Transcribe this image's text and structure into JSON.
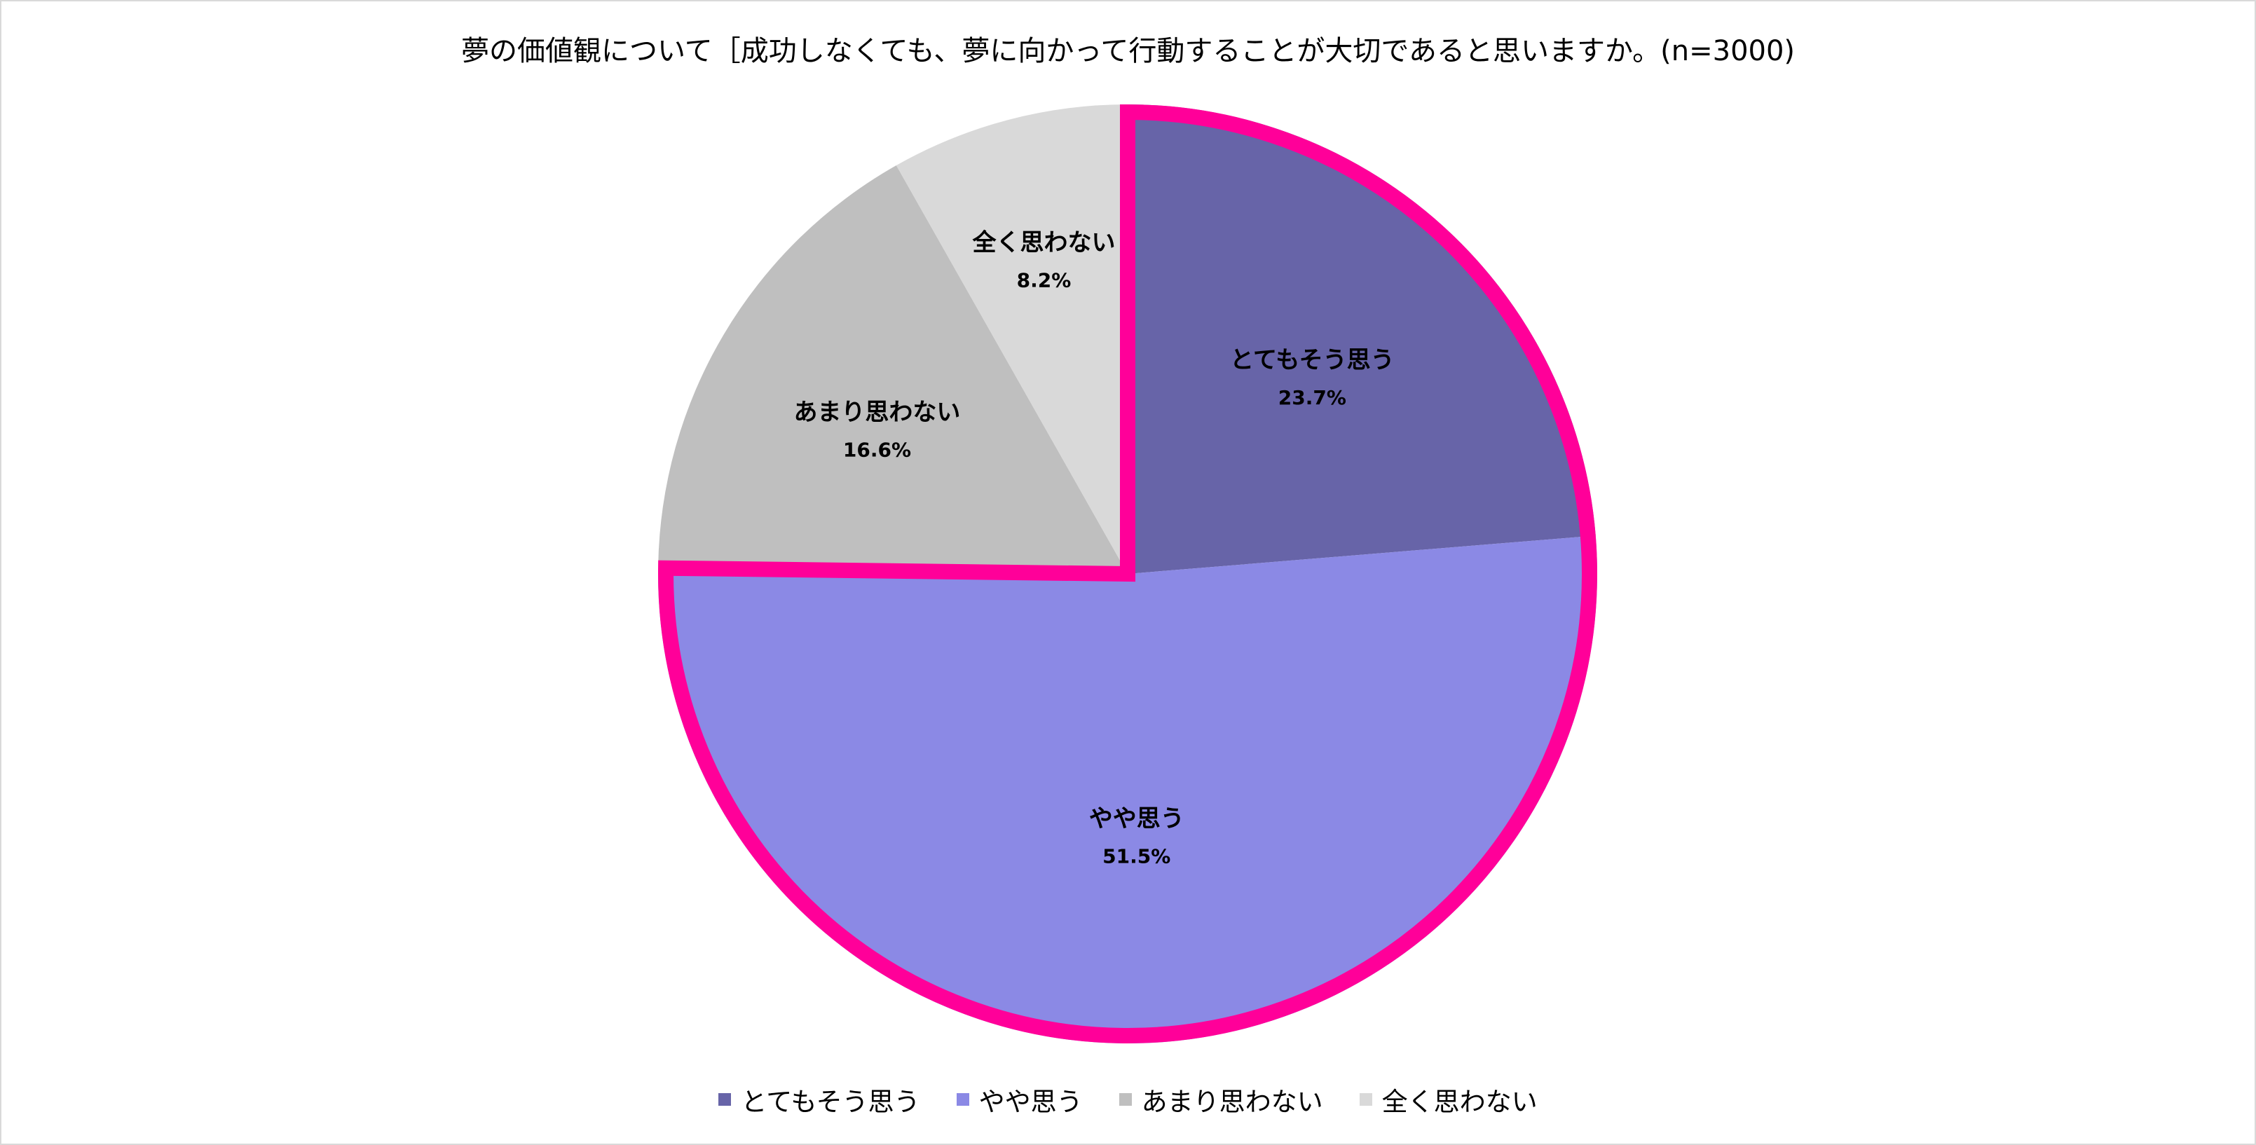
{
  "chart_data": {
    "type": "pie",
    "title": "夢の価値観について［成功しなくても、夢に向かって行動することが大切であると思いますか。(n=3000)",
    "slices": [
      {
        "label": "とてもそう思う",
        "value": 23.7,
        "display": "23.7%",
        "color": "#6764a8"
      },
      {
        "label": "やや思う",
        "value": 51.5,
        "display": "51.5%",
        "color": "#8b89e5"
      },
      {
        "label": "あまり思わない",
        "value": 16.6,
        "display": "16.6%",
        "color": "#bfbfbf"
      },
      {
        "label": "全く思わない",
        "value": 8.2,
        "display": "8.2%",
        "color": "#d9d9d9"
      }
    ],
    "start_angle_deg": 0,
    "direction": "clockwise",
    "highlight": {
      "slices": [
        0,
        1
      ],
      "color": "#ff0099"
    },
    "legend_position": "bottom"
  }
}
